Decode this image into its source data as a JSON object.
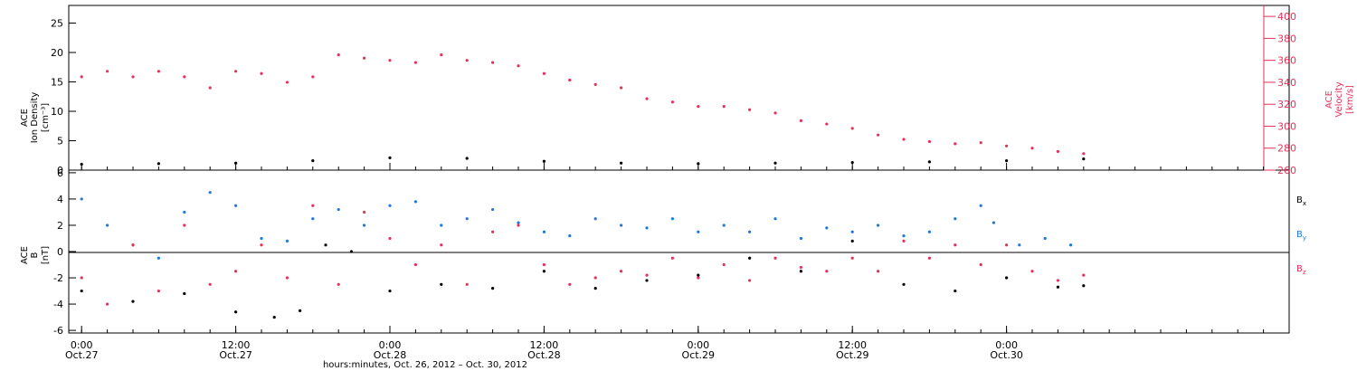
{
  "chart_data": [
    {
      "type": "scatter",
      "title": "",
      "ylabel_left": [
        "ACE",
        "Ion Density",
        "[cm⁻³]"
      ],
      "ylabel_right": [
        "ACE",
        "Velocity",
        "[km/s]"
      ],
      "ylim_left": [
        0,
        28
      ],
      "ylim_right": [
        260,
        410
      ],
      "yticks_left": [
        0,
        5,
        10,
        15,
        20,
        25
      ],
      "yticks_right": [
        260,
        280,
        300,
        320,
        340,
        360,
        380,
        400
      ],
      "series": [
        {
          "name": "",
          "axis": "left",
          "color": "#000000",
          "points": [
            [
              0,
              1.0
            ],
            [
              6,
              1.1
            ],
            [
              12,
              1.2
            ],
            [
              18,
              1.6
            ],
            [
              24,
              2.1
            ],
            [
              30,
              2.0
            ],
            [
              36,
              1.5
            ],
            [
              42,
              1.2
            ],
            [
              48,
              1.1
            ],
            [
              54,
              1.2
            ],
            [
              60,
              1.3
            ],
            [
              66,
              1.4
            ],
            [
              72,
              1.6
            ],
            [
              78,
              1.9
            ]
          ]
        },
        {
          "name": "",
          "axis": "right",
          "color": "#e8305a",
          "points": [
            [
              0,
              345
            ],
            [
              2,
              350
            ],
            [
              4,
              345
            ],
            [
              6,
              350
            ],
            [
              8,
              345
            ],
            [
              10,
              335
            ],
            [
              12,
              350
            ],
            [
              14,
              348
            ],
            [
              16,
              340
            ],
            [
              18,
              345
            ],
            [
              20,
              365
            ],
            [
              22,
              362
            ],
            [
              24,
              360
            ],
            [
              26,
              358
            ],
            [
              28,
              365
            ],
            [
              30,
              360
            ],
            [
              32,
              358
            ],
            [
              34,
              355
            ],
            [
              36,
              348
            ],
            [
              38,
              342
            ],
            [
              40,
              338
            ],
            [
              42,
              335
            ],
            [
              44,
              325
            ],
            [
              46,
              322
            ],
            [
              48,
              318
            ],
            [
              50,
              318
            ],
            [
              52,
              315
            ],
            [
              54,
              312
            ],
            [
              56,
              305
            ],
            [
              58,
              302
            ],
            [
              60,
              298
            ],
            [
              62,
              292
            ],
            [
              64,
              288
            ],
            [
              66,
              286
            ],
            [
              68,
              284
            ],
            [
              70,
              285
            ],
            [
              72,
              282
            ],
            [
              74,
              280
            ],
            [
              76,
              277
            ],
            [
              78,
              275
            ]
          ]
        }
      ]
    },
    {
      "type": "scatter",
      "title": "",
      "ylabel": [
        "ACE",
        "B",
        "[nT]"
      ],
      "ylim": [
        -6.2,
        6.2
      ],
      "yticks": [
        -6,
        -4,
        -2,
        0,
        2,
        4,
        6
      ],
      "legend": [
        "Bx",
        "By",
        "Bz"
      ],
      "legend_placement": "right",
      "series": [
        {
          "name": "Bx",
          "color": "#000000",
          "points": [
            [
              0,
              -3.0
            ],
            [
              4,
              -3.8
            ],
            [
              8,
              -3.2
            ],
            [
              12,
              -4.6
            ],
            [
              15,
              -5.0
            ],
            [
              17,
              -4.5
            ],
            [
              19,
              0.5
            ],
            [
              21,
              0.0
            ],
            [
              24,
              -3.0
            ],
            [
              28,
              -2.5
            ],
            [
              32,
              -2.8
            ],
            [
              36,
              -1.5
            ],
            [
              40,
              -2.8
            ],
            [
              44,
              -2.2
            ],
            [
              48,
              -1.8
            ],
            [
              52,
              -0.5
            ],
            [
              56,
              -1.5
            ],
            [
              60,
              0.8
            ],
            [
              64,
              -2.5
            ],
            [
              68,
              -3.0
            ],
            [
              72,
              -2.0
            ],
            [
              76,
              -2.7
            ],
            [
              78,
              -2.6
            ]
          ]
        },
        {
          "name": "By",
          "color": "#1e78e0",
          "points": [
            [
              0,
              4.0
            ],
            [
              2,
              2.0
            ],
            [
              4,
              0.5
            ],
            [
              6,
              -0.5
            ],
            [
              8,
              3.0
            ],
            [
              10,
              4.5
            ],
            [
              12,
              3.5
            ],
            [
              14,
              1.0
            ],
            [
              16,
              0.8
            ],
            [
              18,
              2.5
            ],
            [
              20,
              3.2
            ],
            [
              22,
              2.0
            ],
            [
              24,
              3.5
            ],
            [
              26,
              3.8
            ],
            [
              28,
              2.0
            ],
            [
              30,
              2.5
            ],
            [
              32,
              3.2
            ],
            [
              34,
              2.2
            ],
            [
              36,
              1.5
            ],
            [
              38,
              1.2
            ],
            [
              40,
              2.5
            ],
            [
              42,
              2.0
            ],
            [
              44,
              1.8
            ],
            [
              46,
              2.5
            ],
            [
              48,
              1.5
            ],
            [
              50,
              2.0
            ],
            [
              52,
              1.5
            ],
            [
              54,
              2.5
            ],
            [
              56,
              1.0
            ],
            [
              58,
              1.8
            ],
            [
              60,
              1.5
            ],
            [
              62,
              2.0
            ],
            [
              64,
              1.2
            ],
            [
              66,
              1.5
            ],
            [
              68,
              2.5
            ],
            [
              70,
              3.5
            ],
            [
              71,
              2.2
            ],
            [
              73,
              0.5
            ],
            [
              75,
              1.0
            ],
            [
              77,
              0.5
            ]
          ]
        },
        {
          "name": "Bz",
          "color": "#e8305a",
          "points": [
            [
              0,
              -2.0
            ],
            [
              2,
              -4.0
            ],
            [
              4,
              0.5
            ],
            [
              6,
              -3.0
            ],
            [
              8,
              2.0
            ],
            [
              10,
              -2.5
            ],
            [
              12,
              -1.5
            ],
            [
              14,
              0.5
            ],
            [
              16,
              -2.0
            ],
            [
              18,
              3.5
            ],
            [
              20,
              -2.5
            ],
            [
              22,
              3.0
            ],
            [
              24,
              1.0
            ],
            [
              26,
              -1.0
            ],
            [
              28,
              0.5
            ],
            [
              30,
              -2.5
            ],
            [
              32,
              1.5
            ],
            [
              34,
              2.0
            ],
            [
              36,
              -1.0
            ],
            [
              38,
              -2.5
            ],
            [
              40,
              -2.0
            ],
            [
              42,
              -1.5
            ],
            [
              44,
              -1.8
            ],
            [
              46,
              -0.5
            ],
            [
              48,
              -2.0
            ],
            [
              50,
              -1.0
            ],
            [
              52,
              -2.2
            ],
            [
              54,
              -0.5
            ],
            [
              56,
              -1.2
            ],
            [
              58,
              -1.5
            ],
            [
              60,
              -0.5
            ],
            [
              62,
              -1.5
            ],
            [
              64,
              0.8
            ],
            [
              66,
              -0.5
            ],
            [
              68,
              0.5
            ],
            [
              70,
              -1.0
            ],
            [
              72,
              0.5
            ],
            [
              74,
              -1.5
            ],
            [
              76,
              -2.2
            ],
            [
              78,
              -1.8
            ]
          ]
        }
      ],
      "zero_line": true
    }
  ],
  "x_axis": {
    "tick_labels_top": [
      "0:00",
      "12:00",
      "0:00",
      "12:00",
      "0:00",
      "12:00",
      "0:00"
    ],
    "tick_labels_bottom": [
      "Oct.27",
      "Oct.27",
      "Oct.28",
      "Oct.28",
      "Oct.29",
      "Oct.29",
      "Oct.30"
    ],
    "tick_hours": [
      0,
      12,
      24,
      36,
      48,
      60,
      72
    ],
    "xlim_hours": [
      -1,
      94
    ],
    "label": "hours:minutes, Oct. 26, 2012 – Oct. 30, 2012"
  }
}
